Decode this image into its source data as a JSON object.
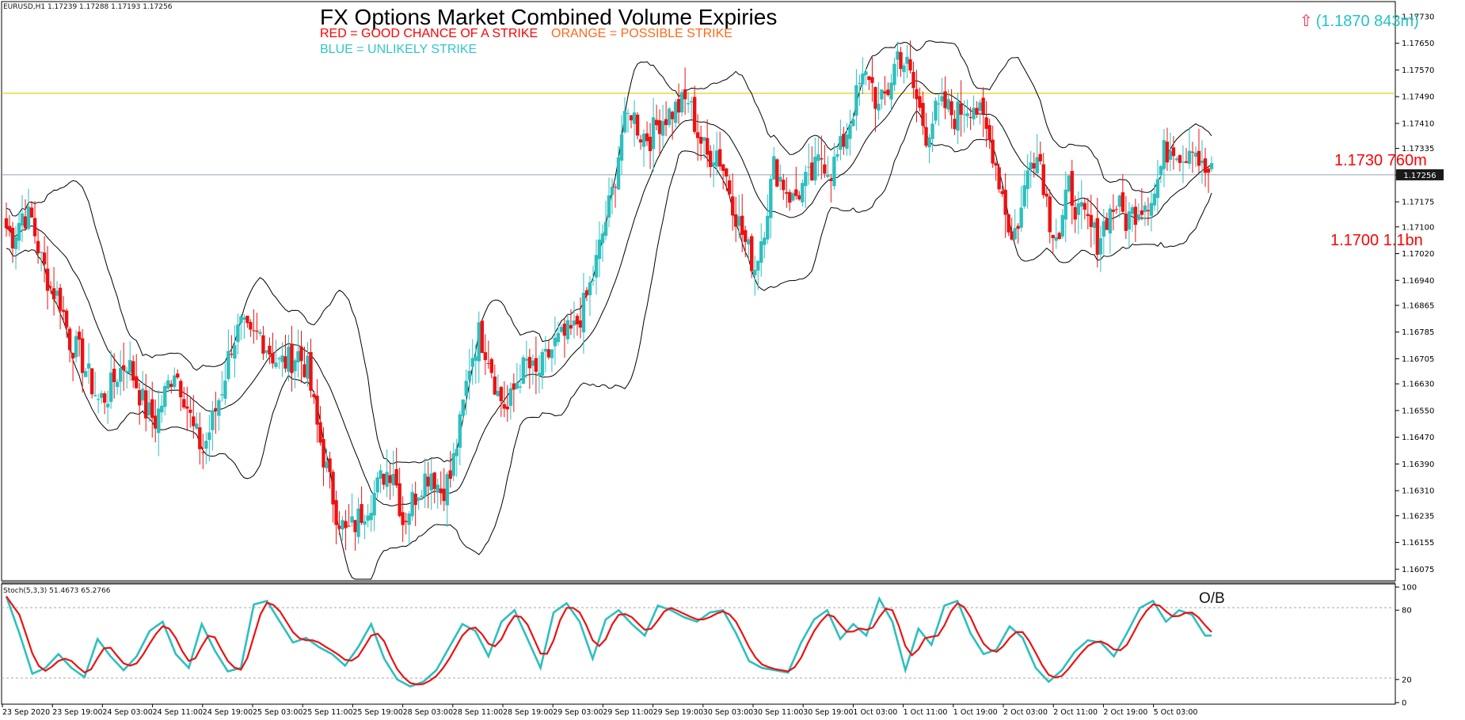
{
  "header": {
    "symbol_info": "EURUSD,H1  1.17239 1.17288 1.17193 1.17256",
    "title": "FX Options Market Combined Volume Expiries",
    "red_note": "RED = GOOD CHANCE OF A STRIKE",
    "orange_note": "ORANGE = POSSIBLE STRIKE",
    "blue_note": "BLUE = UNLIKELY STRIKE",
    "target_arrow": "⇧",
    "target_text": "(1.1870 843m)"
  },
  "levels": [
    {
      "text": "1.1730 760m"
    },
    {
      "text": "1.1700 1.1bn"
    }
  ],
  "stoch_info": "Stoch(5,3,3) 51.4673 65.2766",
  "ob_label": "O/B",
  "colors": {
    "bull": "#2ebfbf",
    "bear": "#ee1111",
    "yellow_line": "#e8c800",
    "price_line": "#8fa3b8",
    "bands": "#000000"
  },
  "chart_data": {
    "type": "candlestick",
    "symbol": "EURUSD",
    "timeframe": "H1",
    "last_price": "1.17256",
    "y_ticks": [
      "1.17730",
      "1.17650",
      "1.17570",
      "1.17490",
      "1.17410",
      "1.17335",
      "1.17255",
      "1.17175",
      "1.17100",
      "1.17020",
      "1.16940",
      "1.16865",
      "1.16785",
      "1.16705",
      "1.16630",
      "1.16550",
      "1.16470",
      "1.16390",
      "1.16310",
      "1.16235",
      "1.16155",
      "1.16075"
    ],
    "ylim": [
      1.16045,
      1.1777
    ],
    "x_labels": [
      "23 Sep 2020",
      "23 Sep 19:00",
      "24 Sep 03:00",
      "24 Sep 11:00",
      "24 Sep 19:00",
      "25 Sep 03:00",
      "25 Sep 11:00",
      "25 Sep 19:00",
      "28 Sep 03:00",
      "28 Sep 11:00",
      "28 Sep 19:00",
      "29 Sep 03:00",
      "29 Sep 11:00",
      "29 Sep 19:00",
      "30 Sep 03:00",
      "30 Sep 11:00",
      "30 Sep 19:00",
      "1 Oct 03:00",
      "1 Oct 11:00",
      "1 Oct 19:00",
      "2 Oct 03:00",
      "2 Oct 11:00",
      "2 Oct 19:00",
      "5 Oct 03:00"
    ],
    "close_path": [
      1.1707,
      1.1714,
      1.1712,
      1.17,
      1.1692,
      1.1688,
      1.1676,
      1.1672,
      1.1665,
      1.1658,
      1.166,
      1.1666,
      1.167,
      1.1663,
      1.1655,
      1.1652,
      1.166,
      1.1668,
      1.166,
      1.1649,
      1.1643,
      1.1652,
      1.1662,
      1.1675,
      1.168,
      1.1676,
      1.1678,
      1.1673,
      1.1669,
      1.167,
      1.1672,
      1.1667,
      1.165,
      1.1637,
      1.1625,
      1.1618,
      1.1621,
      1.1626,
      1.163,
      1.1636,
      1.1638,
      1.1622,
      1.1628,
      1.1634,
      1.1637,
      1.1631,
      1.1635,
      1.165,
      1.1669,
      1.1678,
      1.1672,
      1.166,
      1.1655,
      1.1664,
      1.1669,
      1.1665,
      1.167,
      1.1675,
      1.1677,
      1.1679,
      1.1686,
      1.1695,
      1.1708,
      1.172,
      1.1738,
      1.1745,
      1.1738,
      1.1737,
      1.1742,
      1.1744,
      1.1746,
      1.1748,
      1.1738,
      1.1731,
      1.1733,
      1.1725,
      1.1714,
      1.1705,
      1.1698,
      1.1711,
      1.1728,
      1.1723,
      1.1718,
      1.1722,
      1.1725,
      1.1731,
      1.1727,
      1.1733,
      1.1742,
      1.1752,
      1.1756,
      1.1745,
      1.1751,
      1.1762,
      1.1758,
      1.1748,
      1.1738,
      1.1744,
      1.1746,
      1.1743,
      1.1746,
      1.1747,
      1.1741,
      1.1733,
      1.172,
      1.1706,
      1.1715,
      1.1733,
      1.173,
      1.1712,
      1.1707,
      1.1722,
      1.1714,
      1.1711,
      1.1706,
      1.1713,
      1.1717,
      1.1712,
      1.1715,
      1.1718,
      1.172,
      1.1732,
      1.1735,
      1.1731,
      1.1736,
      1.1727,
      1.17256
    ],
    "bollinger_bands": {
      "period": 20,
      "style": "thin black lines: upper, middle, lower"
    },
    "horizontal_lines": [
      {
        "name": "yellow-level",
        "price": 1.175
      },
      {
        "name": "current-price",
        "price": 1.17256
      }
    ],
    "stochastic": {
      "params": "(5,3,3)",
      "main": 51.4673,
      "signal": 65.2766,
      "levels": [
        80,
        20
      ],
      "axis_labels": [
        "100",
        "80",
        "20",
        "0"
      ],
      "k_path": [
        92,
        60,
        25,
        30,
        42,
        30,
        22,
        55,
        40,
        28,
        40,
        62,
        70,
        42,
        30,
        68,
        45,
        27,
        30,
        85,
        88,
        70,
        52,
        56,
        48,
        42,
        32,
        48,
        68,
        38,
        20,
        14,
        18,
        28,
        48,
        68,
        62,
        40,
        70,
        80,
        55,
        30,
        78,
        86,
        70,
        38,
        72,
        80,
        68,
        58,
        84,
        80,
        74,
        70,
        78,
        80,
        60,
        36,
        30,
        28,
        26,
        52,
        72,
        80,
        55,
        68,
        58,
        90,
        70,
        28,
        64,
        50,
        84,
        88,
        60,
        42,
        46,
        66,
        56,
        30,
        18,
        28,
        44,
        54,
        52,
        40,
        60,
        82,
        88,
        70,
        80,
        76,
        58
      ]
    }
  }
}
